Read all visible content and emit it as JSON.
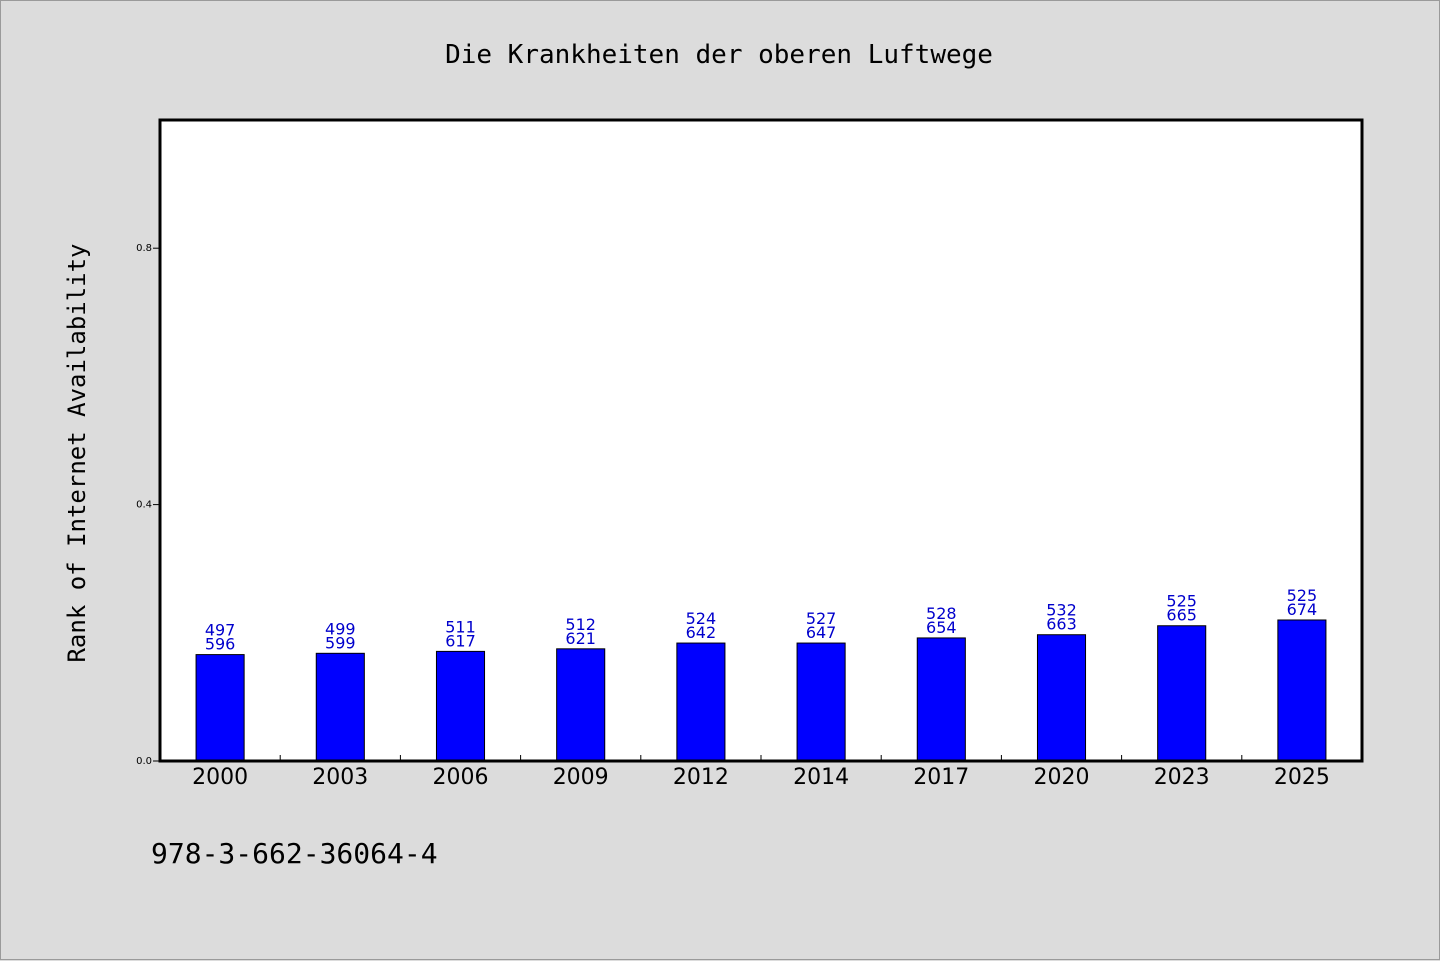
{
  "chart_data": {
    "type": "bar",
    "title": "Die Krankheiten der oberen Luftwege",
    "xlabel": "",
    "ylabel": "Rank of Internet Availability",
    "ylim": [
      0,
      1.0
    ],
    "yticks": [
      "0.0",
      "0.4",
      "0.8"
    ],
    "categories": [
      "2000",
      "2003",
      "2006",
      "2009",
      "2012",
      "2014",
      "2017",
      "2020",
      "2023",
      "2025"
    ],
    "values": [
      0.166,
      0.168,
      0.171,
      0.175,
      0.184,
      0.184,
      0.192,
      0.197,
      0.211,
      0.22
    ],
    "label_top": [
      "497",
      "499",
      "511",
      "512",
      "524",
      "527",
      "528",
      "532",
      "525",
      "525"
    ],
    "label_bottom": [
      "596",
      "599",
      "617",
      "621",
      "642",
      "647",
      "654",
      "663",
      "665",
      "674"
    ],
    "bar_color": "#0000ff",
    "label_color": "#0000cc",
    "grid": false
  },
  "footer_text": "978-3-662-36064-4"
}
